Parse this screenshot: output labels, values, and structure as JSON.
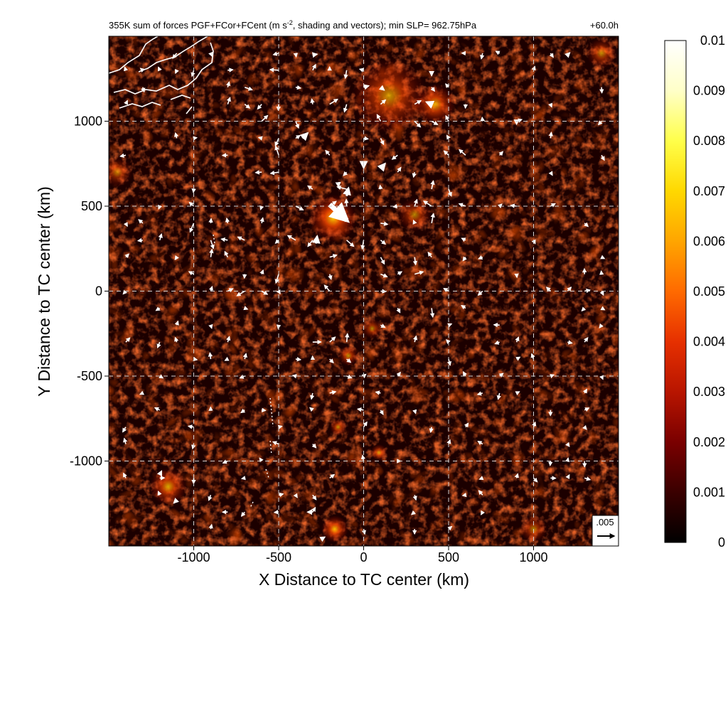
{
  "chart_data": {
    "type": "heatmap",
    "title_left": "355K sum of forces PGF+FCor+FCent (m s",
    "title_superscript": "-2",
    "title_rest": ", shading and vectors); min SLP= 962.75hPa",
    "title_right": "+60.0h",
    "xlabel": "X Distance to TC center (km)",
    "ylabel": "Y Distance to TC center (km)",
    "xlim": [
      -1500,
      1500
    ],
    "ylim": [
      -1500,
      1500
    ],
    "xticks": [
      -1000,
      -500,
      0,
      500,
      1000
    ],
    "xtick_labels": [
      "-1000",
      "-500",
      "0",
      "500",
      "1000"
    ],
    "yticks": [
      -1000,
      -500,
      0,
      500,
      1000
    ],
    "ytick_labels": [
      "-1000",
      "-500",
      "0",
      "500",
      "1000"
    ],
    "grid": "dashed",
    "colorbar": {
      "range": [
        0,
        0.01
      ],
      "ticks": [
        0,
        0.001,
        0.002,
        0.003,
        0.004,
        0.005,
        0.006,
        0.007,
        0.008,
        0.009,
        0.01
      ],
      "tick_labels": [
        "0",
        "0.001",
        "0.002",
        "0.003",
        "0.004",
        "0.005",
        "0.006",
        "0.007",
        "0.008",
        "0.009",
        "0.01"
      ],
      "colormap": [
        "#000000",
        "#3a0000",
        "#7a0000",
        "#b81500",
        "#e63000",
        "#ff6a00",
        "#ffa500",
        "#ffd800",
        "#ffff4a",
        "#ffffc8",
        "#ffffff"
      ]
    },
    "reference_vector": {
      "label": ".005",
      "magnitude": 0.005
    },
    "hotspots": [
      {
        "x": -180,
        "y": 430,
        "value": 0.0085,
        "radius": 140
      },
      {
        "x": 150,
        "y": 1150,
        "value": 0.006,
        "radius": 220
      },
      {
        "x": 420,
        "y": 1100,
        "value": 0.007,
        "radius": 120
      },
      {
        "x": -1150,
        "y": -1150,
        "value": 0.007,
        "radius": 110
      },
      {
        "x": -170,
        "y": -1400,
        "value": 0.008,
        "radius": 80
      },
      {
        "x": -90,
        "y": -380,
        "value": 0.006,
        "radius": 60
      },
      {
        "x": 50,
        "y": -220,
        "value": 0.005,
        "radius": 60
      },
      {
        "x": -150,
        "y": -800,
        "value": 0.006,
        "radius": 50
      },
      {
        "x": 90,
        "y": -950,
        "value": 0.006,
        "radius": 50
      },
      {
        "x": 1000,
        "y": -1400,
        "value": 0.005,
        "radius": 80
      },
      {
        "x": 300,
        "y": 450,
        "value": 0.005,
        "radius": 100
      },
      {
        "x": -1450,
        "y": 700,
        "value": 0.004,
        "radius": 90
      },
      {
        "x": 1400,
        "y": 1400,
        "value": 0.005,
        "radius": 90
      }
    ],
    "vectors": [
      {
        "x": -200,
        "y": 510,
        "u": 0.0048,
        "v": -0.0044
      },
      {
        "x": -100,
        "y": 560,
        "u": 0.0005,
        "v": 0.0022
      },
      {
        "x": -280,
        "y": 280,
        "u": 0.0003,
        "v": 0.002
      },
      {
        "x": -150,
        "y": 640,
        "u": 0.0001,
        "v": -0.0012
      },
      {
        "x": -360,
        "y": 900,
        "u": 0.0014,
        "v": 0.0014
      },
      {
        "x": 100,
        "y": 720,
        "u": 0.0012,
        "v": 0.0014
      },
      {
        "x": 0,
        "y": 760,
        "u": 0.0,
        "v": -0.0016
      },
      {
        "x": 400,
        "y": 1100,
        "u": -0.0014,
        "v": 0.0006
      },
      {
        "x": -300,
        "y": 1390,
        "u": 0.0012,
        "v": 0.0002
      },
      {
        "x": 0,
        "y": 1200,
        "u": 0.0014,
        "v": 0.0004
      },
      {
        "x": 100,
        "y": 1200,
        "u": 0.001,
        "v": -0.0008
      },
      {
        "x": 400,
        "y": 1290,
        "u": 0.0,
        "v": -0.001
      },
      {
        "x": -1200,
        "y": -1080,
        "u": 0.0005,
        "v": 0.001
      },
      {
        "x": -1100,
        "y": -1230,
        "u": -0.0008,
        "v": -0.0008
      },
      {
        "x": -300,
        "y": -1300,
        "u": -0.0014,
        "v": 0.0
      },
      {
        "x": -250,
        "y": -1460,
        "u": 0.001,
        "v": 0.0006
      },
      {
        "x": 1200,
        "y": 1390,
        "u": 0.0006,
        "v": 0.0006
      },
      {
        "x": 900,
        "y": 1000,
        "u": 0.0,
        "v": -0.0008
      }
    ]
  },
  "coastline": {
    "color": "#ffffff"
  }
}
